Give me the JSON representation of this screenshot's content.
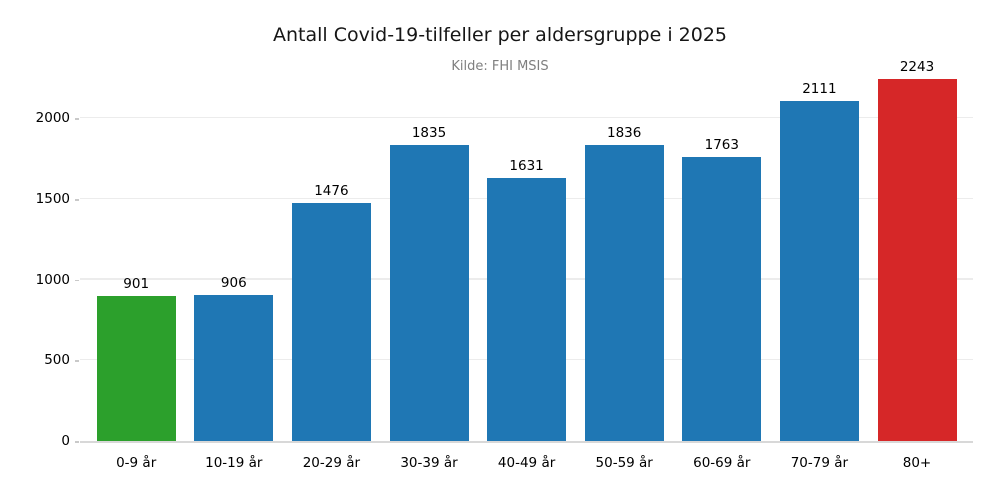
{
  "chart_data": {
    "type": "bar",
    "title": "Antall Covid-19-tilfeller per aldersgruppe i 2025",
    "subtitle": "Kilde: FHI MSIS",
    "categories": [
      "0-9 år",
      "10-19 år",
      "20-29 år",
      "30-39 år",
      "40-49 år",
      "50-59 år",
      "60-69 år",
      "70-79 år",
      "80+"
    ],
    "values": [
      901,
      906,
      1476,
      1835,
      1631,
      1836,
      1763,
      2111,
      2243
    ],
    "bar_colors": [
      "#2ca02c",
      "#1f77b4",
      "#1f77b4",
      "#1f77b4",
      "#1f77b4",
      "#1f77b4",
      "#1f77b4",
      "#1f77b4",
      "#d62728"
    ],
    "value_labels_shown": true,
    "xlabel": "",
    "ylabel": "",
    "yticks": [
      0,
      500,
      1000,
      1500,
      2000
    ],
    "ylim": [
      0,
      2375
    ],
    "grid": "horizontal",
    "legend": "none"
  },
  "colors": {
    "bar_default": "#1f77b4",
    "bar_first_highlight": "#2ca02c",
    "bar_last_highlight": "#d62728",
    "gridline": "#ececec",
    "axis_line": "#d8d8d8",
    "subtitle_text": "#7f7f7f",
    "label_text": "#000000",
    "background": "#ffffff"
  }
}
